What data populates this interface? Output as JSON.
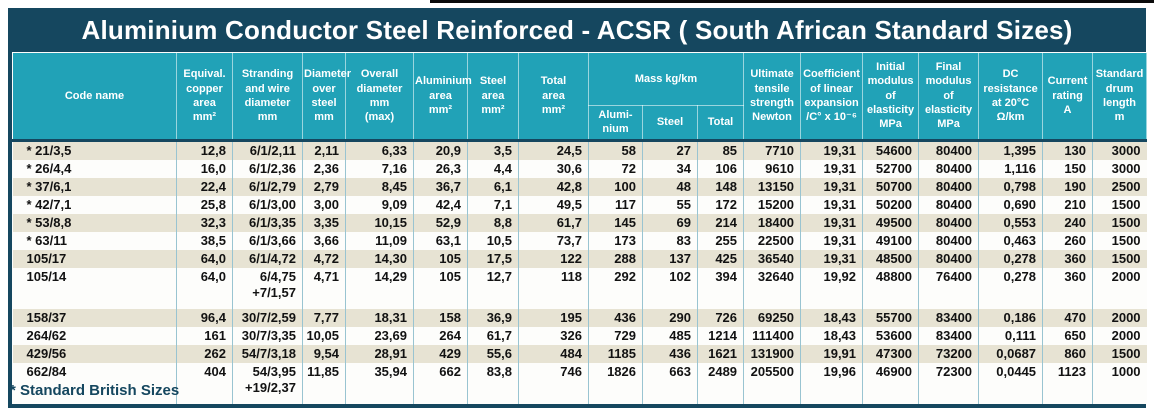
{
  "title": "Aluminium Conductor Steel Reinforced - ACSR ( South African Standard Sizes)",
  "footnote": "* Standard British Sizes",
  "colors": {
    "navy": "#15475F",
    "header_teal": "#21A2B7",
    "row_beige": "#E7E3D3",
    "row_white": "#FDFDFB",
    "body_separator": "#99C4D1",
    "text": "#121212"
  },
  "table": {
    "header": {
      "code": "Code name",
      "equiv": "Equival.\ncopper\narea\nmm²",
      "stranding": "Stranding\nand wire\ndiameter\nmm",
      "diam_steel": "Diameter\nover\nsteel\nmm",
      "overall": "Overall\ndiameter\nmm\n(max)",
      "alu_area": "Aluminium\narea\nmm²",
      "steel_area": "Steel\narea\nmm²",
      "total_area": "Total\narea\nmm²",
      "mass_group": "Mass kg/km",
      "mass_alu": "Alumi-\nnium",
      "mass_steel": "Steel",
      "mass_total": "Total",
      "ultimate": "Ultimate\ntensile\nstrength\nNewton",
      "coeff": "Coefficient\nof linear\nexpansion\n/C° x 10⁻⁶",
      "initial_mod": "Initial\nmodulus\nof\nelasticity\nMPa",
      "final_mod": "Final\nmodulus\nof\nelasticity\nMPa",
      "dc": "DC\nresistance\nat 20°C\nΩ/km",
      "current": "Current\nrating\nA",
      "drum": "Standard\ndrum\nlength\nm"
    },
    "rows": [
      {
        "tall": false,
        "cells": [
          "* 21/3,5",
          "12,8",
          "6/1/2,11",
          "2,11",
          "6,33",
          "20,9",
          "3,5",
          "24,5",
          "58",
          "27",
          "85",
          "7710",
          "19,31",
          "54600",
          "80400",
          "1,395",
          "130",
          "3000"
        ]
      },
      {
        "tall": false,
        "cells": [
          "* 26/4,4",
          "16,0",
          "6/1/2,36",
          "2,36",
          "7,16",
          "26,3",
          "4,4",
          "30,6",
          "72",
          "34",
          "106",
          "9610",
          "19,31",
          "52700",
          "80400",
          "1,116",
          "150",
          "3000"
        ]
      },
      {
        "tall": false,
        "cells": [
          "* 37/6,1",
          "22,4",
          "6/1/2,79",
          "2,79",
          "8,45",
          "36,7",
          "6,1",
          "42,8",
          "100",
          "48",
          "148",
          "13150",
          "19,31",
          "50700",
          "80400",
          "0,798",
          "190",
          "2500"
        ]
      },
      {
        "tall": false,
        "cells": [
          "* 42/7,1",
          "25,8",
          "6/1/3,00",
          "3,00",
          "9,09",
          "42,4",
          "7,1",
          "49,5",
          "117",
          "55",
          "172",
          "15200",
          "19,31",
          "50200",
          "80400",
          "0,690",
          "210",
          "1500"
        ]
      },
      {
        "tall": false,
        "cells": [
          "* 53/8,8",
          "32,3",
          "6/1/3,35",
          "3,35",
          "10,15",
          "52,9",
          "8,8",
          "61,7",
          "145",
          "69",
          "214",
          "18400",
          "19,31",
          "49500",
          "80400",
          "0,553",
          "240",
          "1500"
        ]
      },
      {
        "tall": false,
        "cells": [
          "* 63/11",
          "38,5",
          "6/1/3,66",
          "3,66",
          "11,09",
          "63,1",
          "10,5",
          "73,7",
          "173",
          "83",
          "255",
          "22500",
          "19,31",
          "49100",
          "80400",
          "0,463",
          "260",
          "1500"
        ]
      },
      {
        "tall": false,
        "cells": [
          "105/17",
          "64,0",
          "6/1/4,72",
          "4,72",
          "14,30",
          "105",
          "17,5",
          "122",
          "288",
          "137",
          "425",
          "36540",
          "19,31",
          "48500",
          "80400",
          "0,278",
          "360",
          "1500"
        ]
      },
      {
        "tall": true,
        "cells": [
          "105/14",
          "64,0",
          "6/4,75\n+7/1,57",
          "4,71",
          "14,29",
          "105",
          "12,7",
          "118",
          "292",
          "102",
          "394",
          "32640",
          "19,92",
          "48800",
          "76400",
          "0,278",
          "360",
          "2000"
        ]
      },
      {
        "tall": false,
        "cells": [
          "158/37",
          "96,4",
          "30/7/2,59",
          "7,77",
          "18,31",
          "158",
          "36,9",
          "195",
          "436",
          "290",
          "726",
          "69250",
          "18,43",
          "55700",
          "83400",
          "0,186",
          "470",
          "2000"
        ]
      },
      {
        "tall": false,
        "cells": [
          "264/62",
          "161",
          "30/7/3,35",
          "10,05",
          "23,69",
          "264",
          "61,7",
          "326",
          "729",
          "485",
          "1214",
          "111400",
          "18,43",
          "53600",
          "83400",
          "0,111",
          "650",
          "2000"
        ]
      },
      {
        "tall": false,
        "cells": [
          "429/56",
          "262",
          "54/7/3,18",
          "9,54",
          "28,91",
          "429",
          "55,6",
          "484",
          "1185",
          "436",
          "1621",
          "131900",
          "19,91",
          "47300",
          "73200",
          "0,0687",
          "860",
          "1500"
        ]
      },
      {
        "tall": true,
        "cells": [
          "662/84",
          "404",
          "54/3,95\n+19/2,37",
          "11,85",
          "35,94",
          "662",
          "83,8",
          "746",
          "1826",
          "663",
          "2489",
          "205500",
          "19,96",
          "46900",
          "72300",
          "0,0445",
          "1123",
          "1000"
        ]
      }
    ]
  }
}
